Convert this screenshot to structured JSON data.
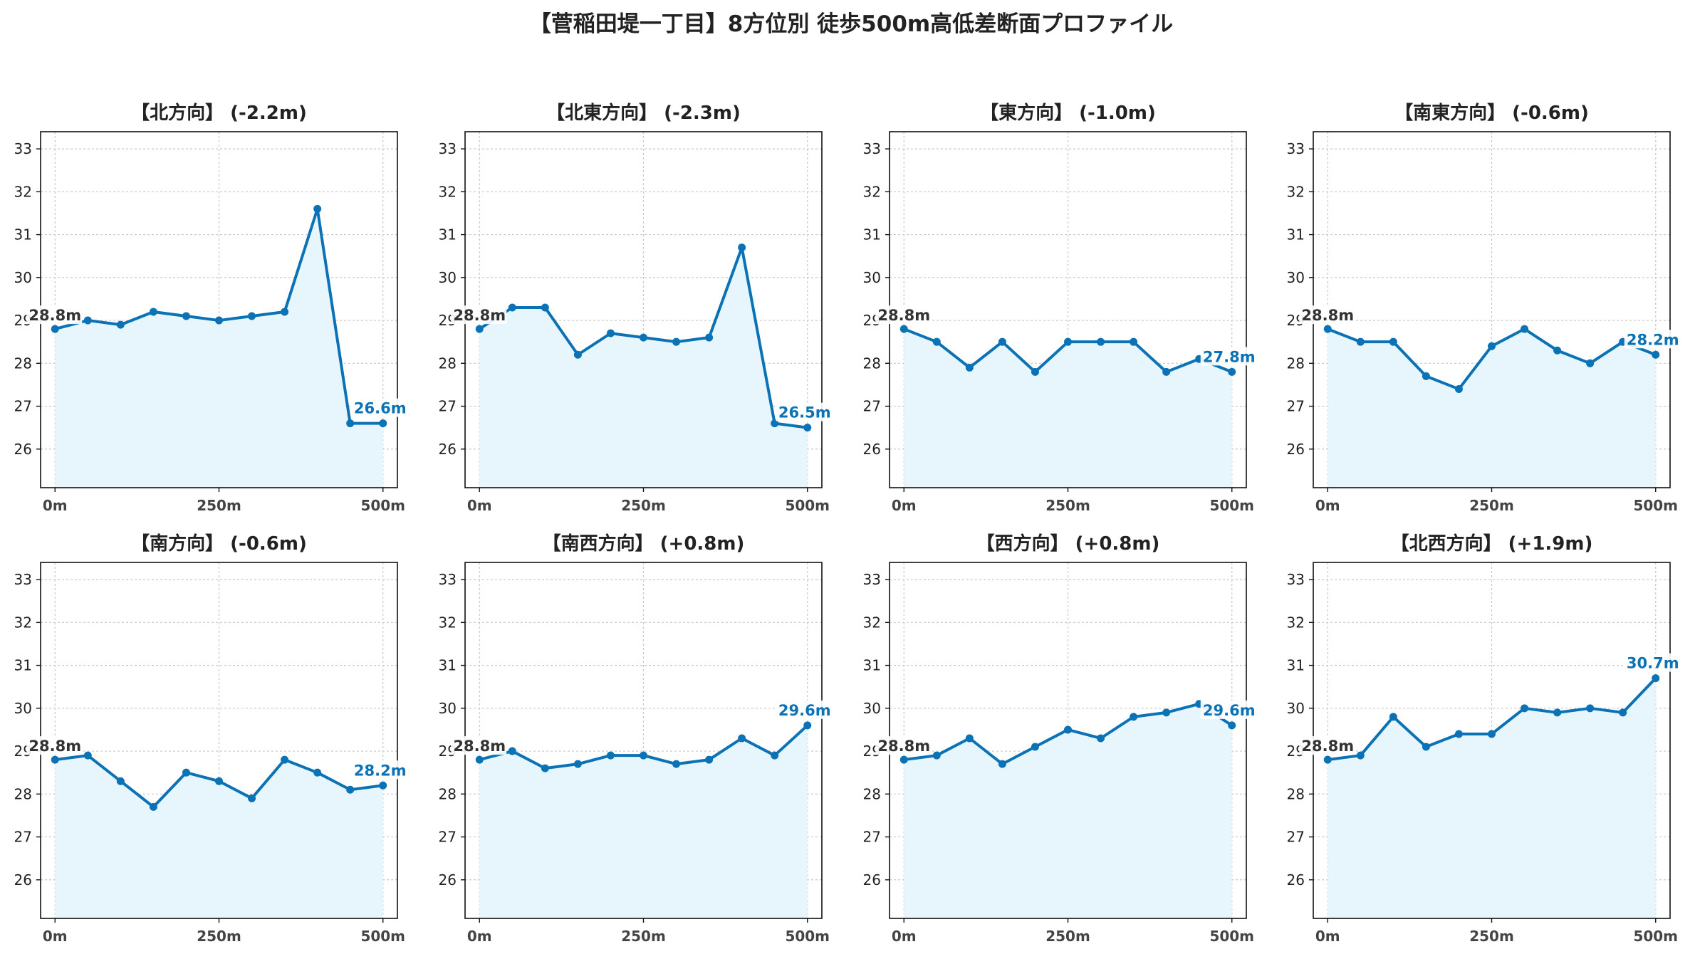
{
  "suptitle": "【菅稲田堤一丁目】8方位別 徒歩500m高低差断面プロファイル",
  "colors": {
    "line": "#0a72b5",
    "fill": "#e6f6fc",
    "start_label": "#333333",
    "end_label": "#0a72b5",
    "grid": "#c8c8c8"
  },
  "chart_data": [
    {
      "type": "line",
      "title": "【北方向】 (-2.2m)",
      "x": [
        0,
        50,
        100,
        150,
        200,
        250,
        300,
        350,
        400,
        450,
        500
      ],
      "y": [
        28.8,
        29.0,
        28.9,
        29.2,
        29.1,
        29.0,
        29.1,
        29.2,
        31.6,
        26.6,
        26.6
      ],
      "start_label": "28.8m",
      "end_label": "26.6m",
      "ylim": [
        25.1,
        33.4
      ],
      "yticks": [
        26,
        27,
        28,
        29,
        30,
        31,
        32,
        33
      ],
      "xticks": [
        {
          "value": 0,
          "label": "0m"
        },
        {
          "value": 250,
          "label": "250m"
        },
        {
          "value": 500,
          "label": "500m"
        }
      ],
      "grid": true
    },
    {
      "type": "line",
      "title": "【北東方向】 (-2.3m)",
      "x": [
        0,
        50,
        100,
        150,
        200,
        250,
        300,
        350,
        400,
        450,
        500
      ],
      "y": [
        28.8,
        29.3,
        29.3,
        28.2,
        28.7,
        28.6,
        28.5,
        28.6,
        30.7,
        26.6,
        26.5
      ],
      "start_label": "28.8m",
      "end_label": "26.5m",
      "ylim": [
        25.1,
        33.4
      ],
      "yticks": [
        26,
        27,
        28,
        29,
        30,
        31,
        32,
        33
      ],
      "xticks": [
        {
          "value": 0,
          "label": "0m"
        },
        {
          "value": 250,
          "label": "250m"
        },
        {
          "value": 500,
          "label": "500m"
        }
      ],
      "grid": true
    },
    {
      "type": "line",
      "title": "【東方向】 (-1.0m)",
      "x": [
        0,
        50,
        100,
        150,
        200,
        250,
        300,
        350,
        400,
        450,
        500
      ],
      "y": [
        28.8,
        28.5,
        27.9,
        28.5,
        27.8,
        28.5,
        28.5,
        28.5,
        27.8,
        28.1,
        27.8
      ],
      "start_label": "28.8m",
      "end_label": "27.8m",
      "ylim": [
        25.1,
        33.4
      ],
      "yticks": [
        26,
        27,
        28,
        29,
        30,
        31,
        32,
        33
      ],
      "xticks": [
        {
          "value": 0,
          "label": "0m"
        },
        {
          "value": 250,
          "label": "250m"
        },
        {
          "value": 500,
          "label": "500m"
        }
      ],
      "grid": true
    },
    {
      "type": "line",
      "title": "【南東方向】 (-0.6m)",
      "x": [
        0,
        50,
        100,
        150,
        200,
        250,
        300,
        350,
        400,
        450,
        500
      ],
      "y": [
        28.8,
        28.5,
        28.5,
        27.7,
        27.4,
        28.4,
        28.8,
        28.3,
        28.0,
        28.5,
        28.2
      ],
      "start_label": "28.8m",
      "end_label": "28.2m",
      "ylim": [
        25.1,
        33.4
      ],
      "yticks": [
        26,
        27,
        28,
        29,
        30,
        31,
        32,
        33
      ],
      "xticks": [
        {
          "value": 0,
          "label": "0m"
        },
        {
          "value": 250,
          "label": "250m"
        },
        {
          "value": 500,
          "label": "500m"
        }
      ],
      "grid": true
    },
    {
      "type": "line",
      "title": "【南方向】 (-0.6m)",
      "x": [
        0,
        50,
        100,
        150,
        200,
        250,
        300,
        350,
        400,
        450,
        500
      ],
      "y": [
        28.8,
        28.9,
        28.3,
        27.7,
        28.5,
        28.3,
        27.9,
        28.8,
        28.5,
        28.1,
        28.2
      ],
      "start_label": "28.8m",
      "end_label": "28.2m",
      "ylim": [
        25.1,
        33.4
      ],
      "yticks": [
        26,
        27,
        28,
        29,
        30,
        31,
        32,
        33
      ],
      "xticks": [
        {
          "value": 0,
          "label": "0m"
        },
        {
          "value": 250,
          "label": "250m"
        },
        {
          "value": 500,
          "label": "500m"
        }
      ],
      "grid": true
    },
    {
      "type": "line",
      "title": "【南西方向】 (+0.8m)",
      "x": [
        0,
        50,
        100,
        150,
        200,
        250,
        300,
        350,
        400,
        450,
        500
      ],
      "y": [
        28.8,
        29.0,
        28.6,
        28.7,
        28.9,
        28.9,
        28.7,
        28.8,
        29.3,
        28.9,
        29.6
      ],
      "start_label": "28.8m",
      "end_label": "29.6m",
      "ylim": [
        25.1,
        33.4
      ],
      "yticks": [
        26,
        27,
        28,
        29,
        30,
        31,
        32,
        33
      ],
      "xticks": [
        {
          "value": 0,
          "label": "0m"
        },
        {
          "value": 250,
          "label": "250m"
        },
        {
          "value": 500,
          "label": "500m"
        }
      ],
      "grid": true
    },
    {
      "type": "line",
      "title": "【西方向】 (+0.8m)",
      "x": [
        0,
        50,
        100,
        150,
        200,
        250,
        300,
        350,
        400,
        450,
        500
      ],
      "y": [
        28.8,
        28.9,
        29.3,
        28.7,
        29.1,
        29.5,
        29.3,
        29.8,
        29.9,
        30.1,
        29.6
      ],
      "start_label": "28.8m",
      "end_label": "29.6m",
      "ylim": [
        25.1,
        33.4
      ],
      "yticks": [
        26,
        27,
        28,
        29,
        30,
        31,
        32,
        33
      ],
      "xticks": [
        {
          "value": 0,
          "label": "0m"
        },
        {
          "value": 250,
          "label": "250m"
        },
        {
          "value": 500,
          "label": "500m"
        }
      ],
      "grid": true
    },
    {
      "type": "line",
      "title": "【北西方向】 (+1.9m)",
      "x": [
        0,
        50,
        100,
        150,
        200,
        250,
        300,
        350,
        400,
        450,
        500
      ],
      "y": [
        28.8,
        28.9,
        29.8,
        29.1,
        29.4,
        29.4,
        30.0,
        29.9,
        30.0,
        29.9,
        30.7
      ],
      "start_label": "28.8m",
      "end_label": "30.7m",
      "ylim": [
        25.1,
        33.4
      ],
      "yticks": [
        26,
        27,
        28,
        29,
        30,
        31,
        32,
        33
      ],
      "xticks": [
        {
          "value": 0,
          "label": "0m"
        },
        {
          "value": 250,
          "label": "250m"
        },
        {
          "value": 500,
          "label": "500m"
        }
      ],
      "grid": true
    }
  ]
}
